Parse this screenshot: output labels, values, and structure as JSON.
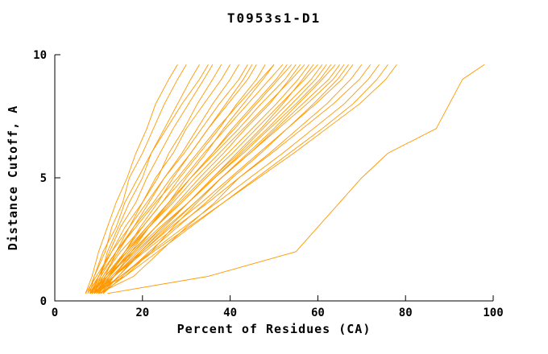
{
  "title": "T0953s1-D1",
  "colors": {
    "line": "#ff9900",
    "axis": "#000000",
    "background": "#ffffff"
  },
  "chart_data": {
    "type": "line",
    "title": "T0953s1-D1",
    "xlabel": "Percent of Residues (CA)",
    "ylabel": "Distance Cutoff, A",
    "xlim": [
      0,
      100
    ],
    "ylim": [
      0,
      10
    ],
    "x_ticks": [
      0,
      20,
      40,
      60,
      80,
      100
    ],
    "y_ticks": [
      0,
      5,
      10
    ],
    "grid": false,
    "legend": "none",
    "y_levels": [
      0.3,
      1,
      2,
      3,
      4,
      5,
      6,
      7,
      8,
      9,
      9.6
    ],
    "series": [
      {
        "x": [
          7,
          8.5,
          10,
          12,
          14,
          16.5,
          18.5,
          21,
          23,
          26,
          28
        ]
      },
      {
        "x": [
          8,
          9,
          11.5,
          13,
          15.5,
          17,
          20,
          22.5,
          25,
          28,
          30
        ]
      },
      {
        "x": [
          9,
          10.5,
          12,
          14.5,
          17,
          20,
          22,
          25,
          28,
          31,
          33
        ]
      },
      {
        "x": [
          7.5,
          9,
          11,
          14,
          16,
          19,
          22,
          25.5,
          29,
          33,
          35
        ]
      },
      {
        "x": [
          8.5,
          10,
          12.5,
          15,
          18.5,
          21,
          24,
          27,
          30.5,
          34,
          36
        ]
      },
      {
        "x": [
          10,
          11.5,
          14,
          17,
          20,
          23.5,
          26,
          29.5,
          32.5,
          36,
          38
        ]
      },
      {
        "x": [
          8,
          10,
          13,
          16,
          20,
          23,
          27,
          30,
          34,
          38,
          40
        ]
      },
      {
        "x": [
          9,
          11,
          14.5,
          18,
          21.5,
          25,
          29,
          32.5,
          36,
          40,
          42
        ]
      },
      {
        "x": [
          7,
          9.5,
          13,
          17,
          21,
          25,
          29.5,
          33.5,
          37.5,
          42,
          44
        ]
      },
      {
        "x": [
          10,
          12.5,
          16,
          19.5,
          23.5,
          27,
          31,
          35,
          39,
          43,
          45
        ]
      },
      {
        "x": [
          8,
          10.5,
          14,
          18,
          22.5,
          26.5,
          31,
          35,
          39.5,
          44,
          46
        ]
      },
      {
        "x": [
          9.5,
          12,
          16,
          20,
          24.5,
          28.5,
          33,
          37.5,
          41.5,
          46,
          48
        ]
      },
      {
        "x": [
          7.5,
          10,
          14,
          18.5,
          23,
          28,
          32.5,
          37,
          42,
          47,
          50
        ]
      },
      {
        "x": [
          11,
          13.5,
          17.5,
          21.5,
          26,
          30,
          34.5,
          38.5,
          43,
          47.5,
          50
        ]
      },
      {
        "x": [
          8,
          11,
          15,
          20,
          24.5,
          29.5,
          34,
          39,
          44,
          49,
          52
        ]
      },
      {
        "x": [
          10,
          12.5,
          17,
          21.5,
          26.5,
          31,
          36,
          40.5,
          45.5,
          50.5,
          53
        ]
      },
      {
        "x": [
          9,
          12,
          16.5,
          21,
          26,
          31,
          36,
          41,
          46,
          51,
          54
        ]
      },
      {
        "x": [
          8.5,
          11.5,
          16,
          21,
          26,
          31,
          36.5,
          42,
          47,
          52.5,
          55
        ]
      },
      {
        "x": [
          10.5,
          13.5,
          18,
          23,
          28,
          33,
          38.5,
          43.5,
          49,
          53.5,
          56
        ]
      },
      {
        "x": [
          8,
          11.5,
          16.5,
          21.5,
          27,
          32,
          37.5,
          43,
          48.5,
          54,
          57
        ]
      },
      {
        "x": [
          9,
          12.5,
          17.5,
          23,
          28.5,
          34,
          39.5,
          45,
          50.5,
          55.5,
          58
        ]
      },
      {
        "x": [
          11,
          14.5,
          19.5,
          25,
          30.5,
          36,
          41.5,
          47,
          52,
          56.5,
          59
        ]
      },
      {
        "x": [
          8.5,
          12,
          17.5,
          23,
          29,
          34.5,
          40.5,
          46,
          51.5,
          57,
          60
        ]
      },
      {
        "x": [
          10,
          13.5,
          19,
          24.5,
          30.5,
          36,
          42,
          47.5,
          53,
          58.5,
          61
        ]
      },
      {
        "x": [
          9,
          13,
          18.5,
          24.5,
          30.5,
          36.5,
          42.5,
          48.5,
          54,
          59.5,
          62
        ]
      },
      {
        "x": [
          8,
          12,
          18,
          24,
          30.5,
          36.5,
          43,
          49,
          55,
          60.5,
          63
        ]
      },
      {
        "x": [
          10.5,
          14.5,
          20,
          26,
          32,
          38,
          44,
          50,
          55.5,
          61,
          64
        ]
      },
      {
        "x": [
          9.5,
          13.5,
          19.5,
          25.5,
          32,
          38,
          44.5,
          50.5,
          56.5,
          62.5,
          65
        ]
      },
      {
        "x": [
          8,
          16,
          22,
          27,
          32.5,
          38,
          44.5,
          51,
          57.5,
          63.5,
          66
        ]
      },
      {
        "x": [
          11,
          15.5,
          21.5,
          28,
          34.5,
          40.5,
          47,
          53,
          59,
          64.5,
          67
        ]
      },
      {
        "x": [
          9,
          13.5,
          20,
          26.5,
          33.5,
          40,
          46.5,
          53,
          59.5,
          65.5,
          68
        ]
      },
      {
        "x": [
          10,
          18,
          24,
          30,
          36.5,
          42,
          49,
          55.5,
          62,
          67.5,
          70
        ]
      },
      {
        "x": [
          8.5,
          13.5,
          20.5,
          27.5,
          35,
          42,
          49.5,
          56.5,
          63.5,
          69.5,
          72
        ]
      },
      {
        "x": [
          9.5,
          15,
          22,
          29.5,
          37,
          44.5,
          52,
          59,
          66,
          71.5,
          74
        ]
      },
      {
        "x": [
          10.5,
          16,
          23.5,
          31,
          38.5,
          46,
          53.5,
          61,
          68,
          73.5,
          76
        ]
      },
      {
        "x": [
          9,
          15,
          22.5,
          30.5,
          38.5,
          46.5,
          54.5,
          62,
          69.5,
          75.5,
          78
        ]
      },
      {
        "x": [
          12,
          35,
          55,
          60,
          65,
          70,
          76,
          87,
          90,
          93,
          98
        ]
      }
    ]
  }
}
